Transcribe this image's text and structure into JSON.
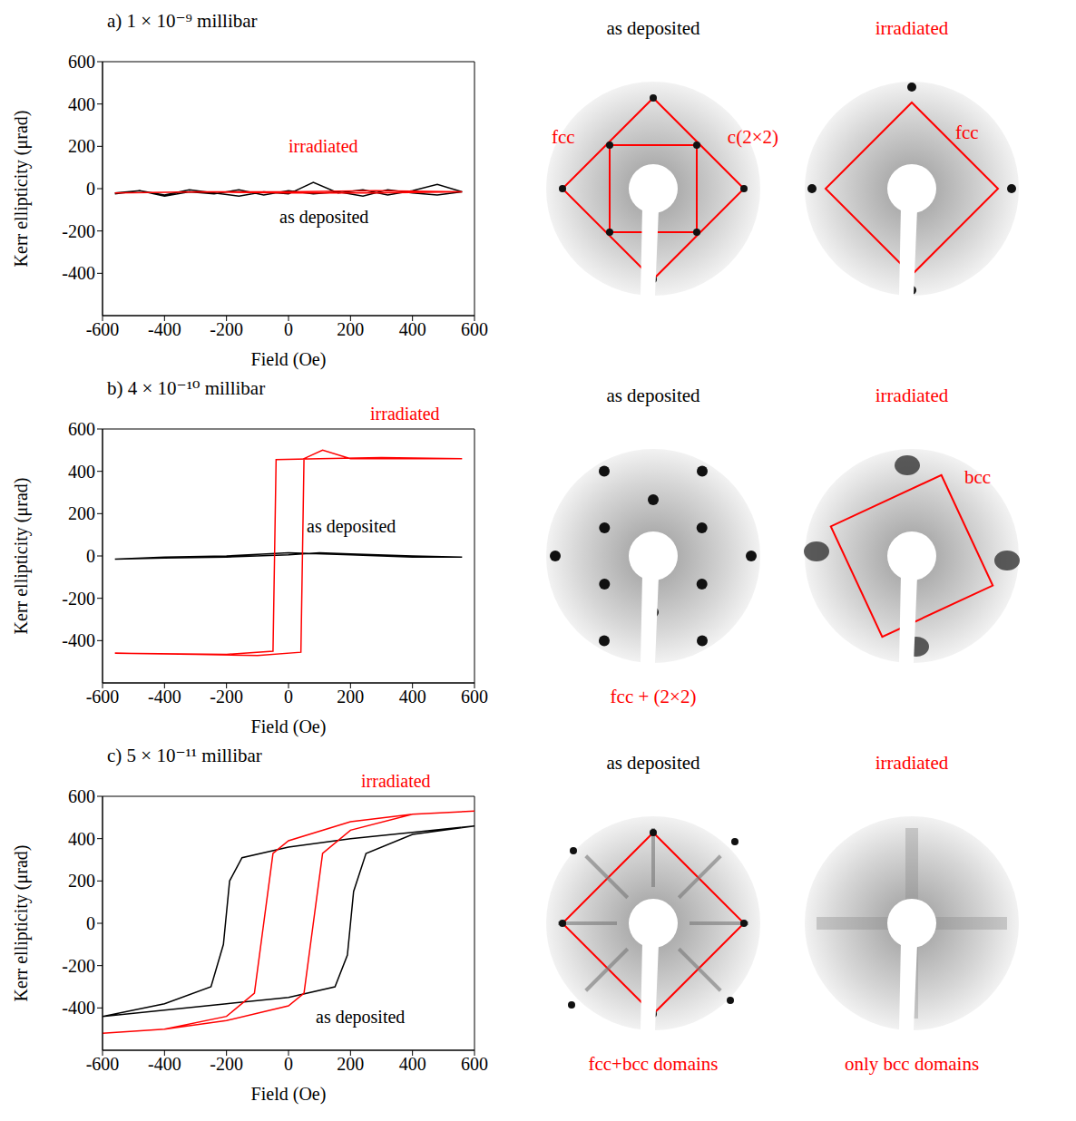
{
  "chart_data": [
    {
      "type": "line",
      "title": "a) 1 × 10⁻⁹ millibar",
      "x_label": "Field (Oe)",
      "y_label": "Kerr ellipticity (μrad)",
      "xlim": [
        -600,
        600
      ],
      "xticks": [
        -600,
        -400,
        -200,
        0,
        200,
        400,
        600
      ],
      "ylim": [
        -600,
        600
      ],
      "yticks": [
        -400,
        -200,
        0,
        200,
        400,
        600
      ],
      "series": [
        {
          "name": "as deposited",
          "color": "#000000",
          "x": [
            -560,
            -480,
            -400,
            -320,
            -240,
            -160,
            -80,
            0,
            80,
            160,
            240,
            320,
            400,
            480,
            560,
            480,
            400,
            320,
            240,
            160,
            80,
            0,
            -80,
            -160,
            -240,
            -320,
            -400,
            -480,
            -560
          ],
          "values": [
            -25,
            -10,
            -30,
            -5,
            -20,
            -35,
            -15,
            -25,
            30,
            -20,
            -5,
            -30,
            -10,
            20,
            -15,
            -30,
            -20,
            -5,
            -35,
            -15,
            -25,
            -10,
            -30,
            -5,
            -25,
            -15,
            -35,
            -10,
            -20
          ]
        },
        {
          "name": "irradiated",
          "color": "#ff0000",
          "x": [
            -560,
            -280,
            0,
            280,
            560,
            280,
            0,
            -280,
            -560
          ],
          "values": [
            -20,
            -15,
            -15,
            -10,
            -15,
            -20,
            -20,
            -15,
            -20
          ]
        }
      ]
    },
    {
      "type": "line",
      "title": "b) 4 × 10⁻¹⁰ millibar",
      "x_label": "Field (Oe)",
      "y_label": "Kerr ellipticity (μrad)",
      "xlim": [
        -600,
        600
      ],
      "xticks": [
        -600,
        -400,
        -200,
        0,
        200,
        400,
        600
      ],
      "ylim": [
        -600,
        600
      ],
      "yticks": [
        -400,
        -200,
        0,
        200,
        400,
        600
      ],
      "series": [
        {
          "name": "as deposited",
          "color": "#000000",
          "x": [
            -560,
            -400,
            -200,
            0,
            100,
            200,
            400,
            560,
            400,
            200,
            0,
            -200,
            -400,
            -560
          ],
          "values": [
            -15,
            -10,
            -5,
            5,
            15,
            10,
            0,
            -5,
            -5,
            5,
            15,
            0,
            -5,
            -15
          ]
        },
        {
          "name": "irradiated",
          "color": "#ff0000",
          "x": [
            560,
            300,
            100,
            -40,
            -45,
            -50,
            -200,
            -560,
            -300,
            -100,
            40,
            45,
            50,
            110,
            200,
            560
          ],
          "values": [
            460,
            465,
            460,
            455,
            0,
            -450,
            -465,
            -460,
            -465,
            -470,
            -455,
            0,
            460,
            500,
            460,
            460
          ]
        }
      ]
    },
    {
      "type": "line",
      "title": "c) 5 × 10⁻¹¹ millibar",
      "x_label": "Field (Oe)",
      "y_label": "Kerr ellipticity (μrad)",
      "xlim": [
        -600,
        600
      ],
      "xticks": [
        -600,
        -400,
        -200,
        0,
        200,
        400,
        600
      ],
      "ylim": [
        -600,
        600
      ],
      "yticks": [
        -400,
        -200,
        0,
        200,
        400,
        600
      ],
      "series": [
        {
          "name": "as deposited",
          "color": "#000000",
          "x": [
            600,
            400,
            200,
            0,
            -150,
            -190,
            -210,
            -250,
            -400,
            -600,
            -400,
            -200,
            0,
            150,
            190,
            210,
            250,
            400,
            600
          ],
          "values": [
            460,
            430,
            400,
            360,
            310,
            200,
            -100,
            -300,
            -380,
            -440,
            -410,
            -380,
            -350,
            -300,
            -150,
            150,
            330,
            420,
            460
          ]
        },
        {
          "name": "irradiated",
          "color": "#ff0000",
          "x": [
            600,
            400,
            200,
            0,
            -50,
            -80,
            -110,
            -200,
            -400,
            -600,
            -400,
            -200,
            0,
            50,
            80,
            110,
            200,
            400,
            600
          ],
          "values": [
            530,
            515,
            480,
            390,
            330,
            0,
            -330,
            -440,
            -500,
            -520,
            -500,
            -460,
            -390,
            -330,
            0,
            330,
            440,
            515,
            530
          ]
        }
      ]
    }
  ],
  "leed_panels": [
    [
      {
        "header": "as deposited",
        "labels": [
          "fcc",
          "c(2×2)"
        ]
      },
      {
        "header": "irradiated",
        "labels": [
          "fcc"
        ]
      }
    ],
    [
      {
        "header": "as deposited",
        "caption": "fcc + (2×2)"
      },
      {
        "header": "irradiated",
        "labels": [
          "bcc"
        ]
      }
    ],
    [
      {
        "header": "as deposited",
        "caption": "fcc+bcc domains"
      },
      {
        "header": "irradiated",
        "caption": "only bcc domains"
      }
    ]
  ]
}
